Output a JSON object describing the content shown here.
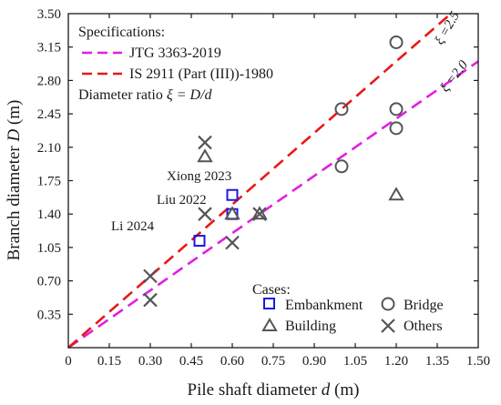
{
  "chart_data": {
    "type": "scatter",
    "xlabel_text": "Pile shaft diameter ",
    "xlabel_var": "d",
    "xlabel_unit": " (m)",
    "ylabel_text": "Branch diameter ",
    "ylabel_var": "D",
    "ylabel_unit": " (m)",
    "xlim": [
      0,
      1.5
    ],
    "ylim": [
      0,
      3.5
    ],
    "x_ticks": [
      "0",
      "0.15",
      "0.30",
      "0.45",
      "0.60",
      "0.75",
      "0.90",
      "1.05",
      "1.20",
      "1.35",
      "1.50"
    ],
    "y_ticks": [
      "0.35",
      "0.70",
      "1.05",
      "1.40",
      "1.75",
      "2.10",
      "2.45",
      "2.80",
      "3.15",
      "3.50"
    ],
    "specifications": {
      "title": "Specifications:",
      "lines": [
        {
          "name": "JTG 3363-2019",
          "slope": 2.0,
          "color": "#e020e0",
          "label": "ξ =2.0"
        },
        {
          "name": "IS 2911 (Part (III))-1980",
          "slope": 2.5,
          "color": "#e81818",
          "label": "ξ =2.5"
        }
      ],
      "ratio_note_prefix": "Diameter ratio ",
      "ratio_note_formula": "ξ = D/d"
    },
    "cases_title": "Cases:",
    "series": [
      {
        "name": "Embankment",
        "marker": "square",
        "color": "#1a1adc",
        "points": [
          [
            0.48,
            1.12
          ],
          [
            0.6,
            1.4
          ],
          [
            0.6,
            1.6
          ]
        ]
      },
      {
        "name": "Bridge",
        "marker": "circle",
        "color": "#555555",
        "points": [
          [
            1.0,
            1.9
          ],
          [
            1.0,
            2.5
          ],
          [
            1.2,
            2.3
          ],
          [
            1.2,
            2.5
          ],
          [
            1.2,
            3.2
          ]
        ]
      },
      {
        "name": "Building",
        "marker": "triangle",
        "color": "#555555",
        "points": [
          [
            0.5,
            2.0
          ],
          [
            0.6,
            1.4
          ],
          [
            0.7,
            1.4
          ],
          [
            1.2,
            1.6
          ]
        ]
      },
      {
        "name": "Others",
        "marker": "x",
        "color": "#555555",
        "points": [
          [
            0.3,
            0.5
          ],
          [
            0.3,
            0.75
          ],
          [
            0.5,
            1.4
          ],
          [
            0.5,
            2.15
          ],
          [
            0.6,
            1.1
          ],
          [
            0.7,
            1.4
          ]
        ]
      }
    ],
    "annotations": [
      {
        "text": "Xiong 2023",
        "x": 0.6,
        "y": 1.6
      },
      {
        "text": "Liu 2022",
        "x": 0.6,
        "y": 1.4
      },
      {
        "text": "Li 2024",
        "x": 0.48,
        "y": 1.12
      }
    ],
    "grid": false,
    "legend_position": "bottom-right"
  }
}
